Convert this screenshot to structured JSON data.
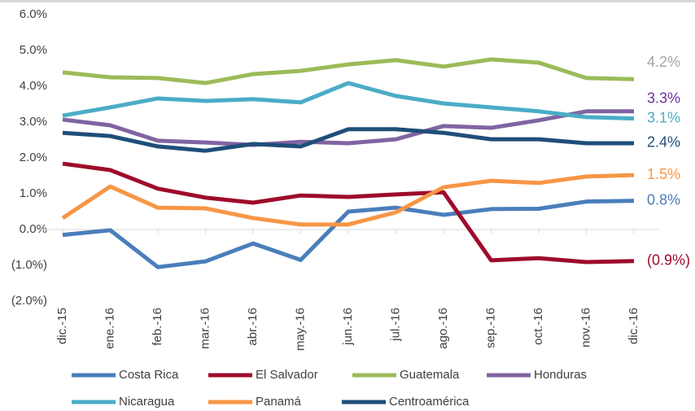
{
  "chart_data": {
    "type": "line",
    "categories": [
      "dic.-15",
      "ene.-16",
      "feb.-16",
      "mar.-16",
      "abr.-16",
      "may.-16",
      "jun.-16",
      "jul.-16",
      "ago.-16",
      "sep.-16",
      "oct.-16",
      "nov.-16",
      "dic.-16"
    ],
    "ylim": [
      -2.0,
      6.0
    ],
    "yticks": [
      {
        "value": 6.0,
        "label": "6.0%"
      },
      {
        "value": 5.0,
        "label": "5.0%"
      },
      {
        "value": 4.0,
        "label": "4.0%"
      },
      {
        "value": 3.0,
        "label": "3.0%"
      },
      {
        "value": 2.0,
        "label": "2.0%"
      },
      {
        "value": 1.0,
        "label": "1.0%"
      },
      {
        "value": 0.0,
        "label": "0.0%"
      },
      {
        "value": -1.0,
        "label": "(1.0%)"
      },
      {
        "value": -2.0,
        "label": "(2.0%)"
      }
    ],
    "grid": false,
    "legend": "bottom",
    "series": [
      {
        "name": "Costa Rica",
        "color": "#4a7ebb",
        "label_color": "#4a7ebb",
        "values": [
          -0.15,
          -0.02,
          -1.05,
          -0.89,
          -0.39,
          -0.85,
          0.5,
          0.61,
          0.41,
          0.57,
          0.58,
          0.78,
          0.8
        ],
        "value_labels": [
          null,
          null,
          null,
          null,
          null,
          null,
          null,
          null,
          null,
          null,
          null,
          null,
          "0.8%"
        ]
      },
      {
        "name": "El Salvador",
        "color": "#9e0b2b",
        "label_color": "#9e0b2b",
        "values": [
          1.84,
          1.66,
          1.14,
          0.89,
          0.75,
          0.95,
          0.91,
          0.98,
          1.04,
          -0.86,
          -0.8,
          -0.91,
          -0.88
        ],
        "value_labels": [
          null,
          null,
          null,
          null,
          null,
          null,
          null,
          null,
          null,
          null,
          null,
          null,
          "(0.9%)"
        ]
      },
      {
        "name": "Guatemala",
        "color": "#9bbb59",
        "label_color": "#a6a6a6",
        "values": [
          4.39,
          4.25,
          4.23,
          4.09,
          4.34,
          4.43,
          4.61,
          4.73,
          4.55,
          4.75,
          4.66,
          4.23,
          4.2
        ],
        "value_labels": [
          null,
          null,
          null,
          null,
          null,
          null,
          null,
          null,
          null,
          null,
          null,
          null,
          "4.2%"
        ]
      },
      {
        "name": "Honduras",
        "color": "#8064a2",
        "label_color": "#7030a0",
        "values": [
          3.07,
          2.91,
          2.48,
          2.43,
          2.36,
          2.45,
          2.41,
          2.52,
          2.89,
          2.84,
          3.05,
          3.3,
          3.3
        ],
        "value_labels": [
          null,
          null,
          null,
          null,
          null,
          null,
          null,
          null,
          null,
          null,
          null,
          null,
          "3.3%"
        ]
      },
      {
        "name": "Nicaragua",
        "color": "#4bacc6",
        "label_color": "#4bacc6",
        "values": [
          3.18,
          3.41,
          3.66,
          3.59,
          3.64,
          3.55,
          4.09,
          3.73,
          3.52,
          3.41,
          3.3,
          3.14,
          3.1
        ],
        "value_labels": [
          null,
          null,
          null,
          null,
          null,
          null,
          null,
          null,
          null,
          null,
          null,
          null,
          "3.1%"
        ]
      },
      {
        "name": "Panamá",
        "color": "#f79646",
        "label_color": "#f79646",
        "values": [
          0.32,
          1.2,
          0.61,
          0.59,
          0.32,
          0.14,
          0.14,
          0.48,
          1.18,
          1.36,
          1.3,
          1.48,
          1.52
        ],
        "value_labels": [
          null,
          null,
          null,
          null,
          null,
          null,
          null,
          null,
          null,
          null,
          null,
          null,
          "1.5%"
        ]
      },
      {
        "name": "Centroamérica",
        "color": "#1f4e79",
        "label_color": "#1f4e79",
        "values": [
          2.7,
          2.61,
          2.32,
          2.2,
          2.39,
          2.32,
          2.8,
          2.8,
          2.7,
          2.52,
          2.52,
          2.41,
          2.41
        ],
        "value_labels": [
          null,
          null,
          null,
          null,
          null,
          null,
          null,
          null,
          null,
          null,
          null,
          null,
          "2.4%"
        ]
      }
    ]
  }
}
